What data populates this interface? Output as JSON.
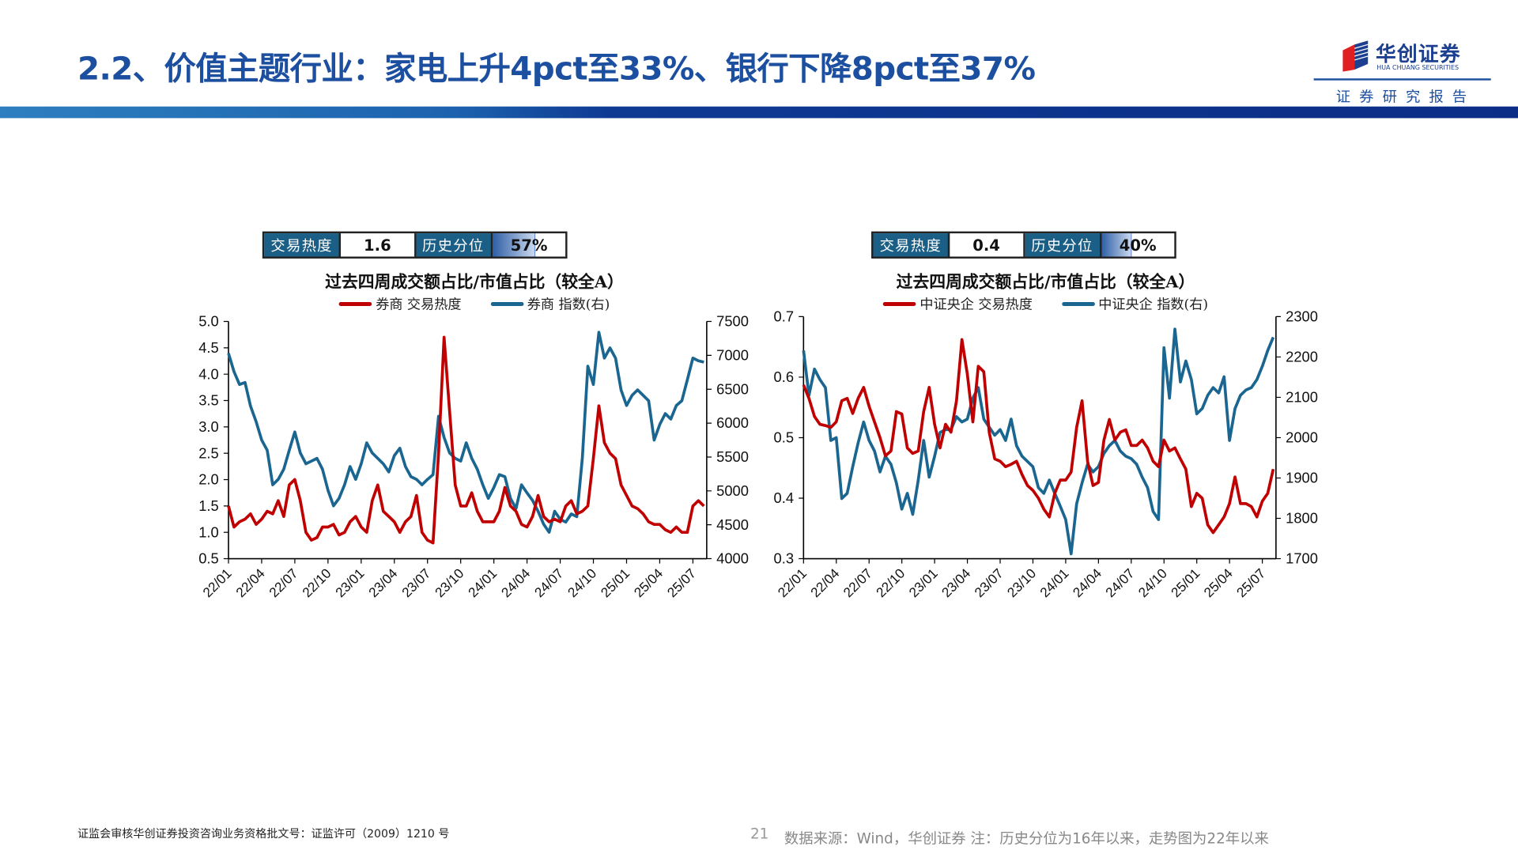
{
  "header": {
    "title": "2.2、价值主题行业：家电上升4pct至33%、银行下降8pct至37%",
    "logo_name": "华创证券",
    "logo_en": "HUA CHUANG SECURITIES",
    "report_label": "证券研究报告",
    "brand_color": "#1c4f9f"
  },
  "panels": [
    {
      "badge": {
        "heat_label": "交易热度",
        "heat_value": "1.6",
        "pct_label": "历史分位",
        "pct_value": "57%",
        "pct_fraction": 0.57
      }
    },
    {
      "badge": {
        "heat_label": "交易热度",
        "heat_value": "0.4",
        "pct_label": "历史分位",
        "pct_value": "40%",
        "pct_fraction": 0.4
      }
    }
  ],
  "chart_data": [
    {
      "type": "line",
      "title": "过去四周成交额占比/市值占比（较全A）",
      "x_ticks": [
        "22/01",
        "22/04",
        "22/07",
        "22/10",
        "23/01",
        "23/04",
        "23/07",
        "23/10",
        "24/01",
        "24/04",
        "24/07",
        "24/10",
        "25/01",
        "25/04",
        "25/07"
      ],
      "x_range": [
        "2022-01",
        "2025-08"
      ],
      "ylim_left": [
        0.5,
        5.0
      ],
      "yticks_left": [
        "0.5",
        "1.0",
        "1.5",
        "2.0",
        "2.5",
        "3.0",
        "3.5",
        "4.0",
        "4.5",
        "5.0"
      ],
      "ylim_right": [
        4000,
        7500
      ],
      "yticks_right": [
        "4000",
        "4500",
        "5000",
        "5500",
        "6000",
        "6500",
        "7000",
        "7500"
      ],
      "legend_position": "top",
      "grid": false,
      "x_frequency": "semi-monthly from 2022-01",
      "series": [
        {
          "name": "券商 交易热度",
          "axis": "left",
          "color": "#c00000",
          "values": [
            1.5,
            1.1,
            1.2,
            1.25,
            1.35,
            1.15,
            1.25,
            1.4,
            1.35,
            1.6,
            1.3,
            1.9,
            2.0,
            1.6,
            1.0,
            0.85,
            0.9,
            1.1,
            1.1,
            1.15,
            0.95,
            1.0,
            1.2,
            1.3,
            1.1,
            1.0,
            1.6,
            1.9,
            1.4,
            1.3,
            1.2,
            1.0,
            1.2,
            1.3,
            1.7,
            1.0,
            0.85,
            0.8,
            2.5,
            4.7,
            3.3,
            1.9,
            1.5,
            1.5,
            1.75,
            1.4,
            1.2,
            1.2,
            1.2,
            1.4,
            1.85,
            1.5,
            1.4,
            1.15,
            1.1,
            1.3,
            1.7,
            1.3,
            1.2,
            1.25,
            1.2,
            1.5,
            1.6,
            1.35,
            1.4,
            1.5,
            2.4,
            3.4,
            2.7,
            2.5,
            2.4,
            1.9,
            1.7,
            1.5,
            1.45,
            1.35,
            1.2,
            1.15,
            1.15,
            1.05,
            1.0,
            1.1,
            1.0,
            1.0,
            1.5,
            1.6,
            1.5
          ]
        },
        {
          "name": "券商 指数(右)",
          "axis": "right",
          "color": "#1a6690",
          "values": [
            7030,
            6760,
            6570,
            6600,
            6250,
            6020,
            5750,
            5600,
            5090,
            5170,
            5320,
            5600,
            5870,
            5560,
            5400,
            5440,
            5480,
            5320,
            5010,
            4780,
            4890,
            5090,
            5360,
            5170,
            5400,
            5710,
            5560,
            5480,
            5400,
            5280,
            5520,
            5630,
            5360,
            5210,
            5170,
            5090,
            5170,
            5240,
            6100,
            5790,
            5560,
            5480,
            5440,
            5710,
            5480,
            5320,
            5090,
            4890,
            5050,
            5240,
            5210,
            4890,
            4740,
            5090,
            4970,
            4860,
            4700,
            4510,
            4390,
            4700,
            4580,
            4540,
            4660,
            4620,
            5480,
            6840,
            6570,
            7340,
            6960,
            7110,
            6960,
            6490,
            6260,
            6410,
            6490,
            6410,
            6330,
            5750,
            5980,
            6140,
            6060,
            6260,
            6330,
            6640,
            6960,
            6920,
            6900
          ]
        }
      ]
    },
    {
      "type": "line",
      "title": "过去四周成交额占比/市值占比（较全A）",
      "x_ticks": [
        "22/01",
        "22/04",
        "22/07",
        "22/10",
        "23/01",
        "23/04",
        "23/07",
        "23/10",
        "24/01",
        "24/04",
        "24/07",
        "24/10",
        "25/01",
        "25/04",
        "25/07"
      ],
      "x_range": [
        "2022-01",
        "2025-08"
      ],
      "ylim_left": [
        0.3,
        0.7
      ],
      "yticks_left": [
        "0.3",
        "0.4",
        "0.5",
        "0.6",
        "0.7"
      ],
      "ylim_right": [
        1700,
        2300
      ],
      "yticks_right": [
        "1700",
        "1800",
        "1900",
        "2000",
        "2100",
        "2200",
        "2300"
      ],
      "legend_position": "top",
      "grid": false,
      "x_frequency": "semi-monthly from 2022-01",
      "series": [
        {
          "name": "中证央企 交易热度",
          "axis": "left",
          "color": "#c00000",
          "values": [
            0.587,
            0.565,
            0.535,
            0.522,
            0.52,
            0.517,
            0.526,
            0.561,
            0.565,
            0.54,
            0.565,
            0.583,
            0.552,
            0.526,
            0.5,
            0.47,
            0.478,
            0.543,
            0.539,
            0.483,
            0.474,
            0.478,
            0.543,
            0.583,
            0.522,
            0.483,
            0.522,
            0.509,
            0.561,
            0.662,
            0.605,
            0.526,
            0.618,
            0.609,
            0.509,
            0.465,
            0.461,
            0.452,
            0.456,
            0.461,
            0.439,
            0.421,
            0.413,
            0.4,
            0.382,
            0.369,
            0.408,
            0.43,
            0.43,
            0.443,
            0.517,
            0.561,
            0.461,
            0.421,
            0.426,
            0.496,
            0.53,
            0.496,
            0.509,
            0.513,
            0.487,
            0.487,
            0.496,
            0.483,
            0.461,
            0.452,
            0.496,
            0.478,
            0.483,
            0.465,
            0.448,
            0.386,
            0.408,
            0.4,
            0.356,
            0.343,
            0.356,
            0.369,
            0.391,
            0.435,
            0.391,
            0.391,
            0.386,
            0.369,
            0.395,
            0.408,
            0.448
          ]
        },
        {
          "name": "中证央企 指数(右)",
          "axis": "right",
          "color": "#1a6690",
          "values": [
            2216,
            2105,
            2170,
            2144,
            2124,
            1993,
            2000,
            1849,
            1862,
            1928,
            1987,
            2039,
            1993,
            1967,
            1915,
            1954,
            1934,
            1888,
            1823,
            1862,
            1810,
            1895,
            1993,
            1902,
            1954,
            2013,
            2020,
            2020,
            2052,
            2039,
            2046,
            2098,
            2124,
            2046,
            2026,
            2006,
            2020,
            1993,
            2046,
            1980,
            1954,
            1941,
            1928,
            1876,
            1862,
            1895,
            1862,
            1830,
            1797,
            1712,
            1836,
            1888,
            1934,
            1915,
            1928,
            1961,
            1980,
            1993,
            1967,
            1954,
            1948,
            1934,
            1902,
            1876,
            1817,
            1797,
            2223,
            2098,
            2269,
            2138,
            2190,
            2144,
            2059,
            2072,
            2105,
            2124,
            2111,
            2151,
            1993,
            2072,
            2105,
            2118,
            2124,
            2144,
            2177,
            2216,
            2249
          ]
        }
      ]
    }
  ],
  "footer": {
    "license": "证监会审核华创证券投资咨询业务资格批文号：证监许可（2009）1210 号",
    "page_number": "21",
    "source": "数据来源：Wind，华创证券 注：历史分位为16年以来，走势图为22年以来"
  }
}
